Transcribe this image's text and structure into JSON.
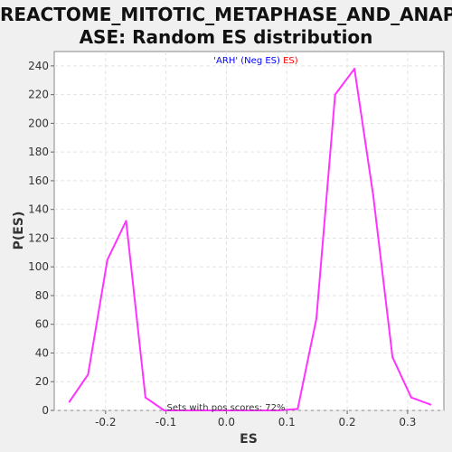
{
  "chart_data": {
    "type": "line",
    "title_line1": "REACTOME_MITOTIC_METAPHASE_AND_ANAPH",
    "title_line2": "ASE: Random ES distribution",
    "xlabel": "ES",
    "ylabel": "P(ES)",
    "xlim": [
      -0.285,
      0.36
    ],
    "ylim": [
      0,
      250
    ],
    "xticks": [
      -0.2,
      -0.1,
      0.0,
      0.1,
      0.2,
      0.3
    ],
    "xtick_labels": [
      "-0.2",
      "-0.1",
      "0.0",
      "0.1",
      "0.2",
      "0.3"
    ],
    "yticks": [
      0,
      20,
      40,
      60,
      80,
      100,
      120,
      140,
      160,
      180,
      200,
      220,
      240
    ],
    "grid": true,
    "legend": {
      "part1": "'ARH' (Neg ES)",
      "part2": "ES)",
      "color1": "#0000ff",
      "color2": "#ff0000",
      "placement": "top-center"
    },
    "annotation": "Sets with pos scores: 72%",
    "series": [
      {
        "color": "#ff33ff",
        "x": [
          -0.26,
          -0.229,
          -0.197,
          -0.166,
          -0.134,
          -0.103,
          -0.071,
          -0.04,
          -0.008,
          0.023,
          0.055,
          0.086,
          0.118,
          0.149,
          0.18,
          0.212,
          0.243,
          0.275,
          0.306,
          0.338
        ],
        "y": [
          6,
          25,
          105,
          132,
          9,
          0,
          0,
          0,
          0,
          0,
          0,
          0,
          1,
          64,
          220,
          238,
          150,
          37,
          9,
          4
        ]
      }
    ]
  }
}
